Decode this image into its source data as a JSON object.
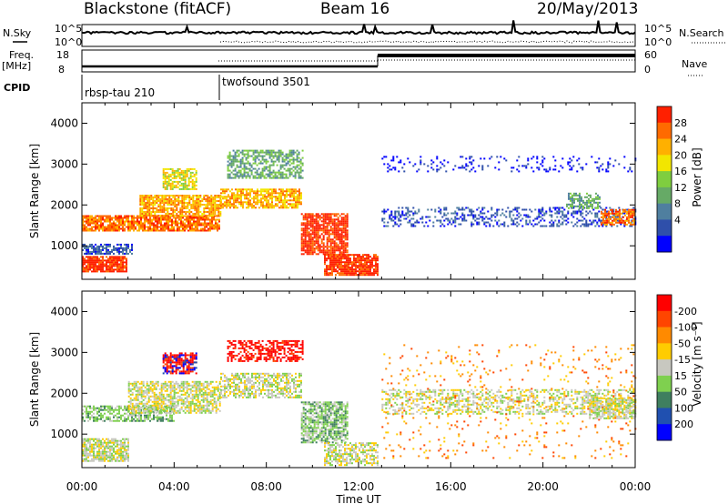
{
  "header": {
    "site": "Blackstone (fitACF)",
    "beam": "Beam 16",
    "date": "20/May/2013"
  },
  "summary_labels": {
    "nsky": "N.Sky",
    "nsearch": "N.Search",
    "freq": "Freq.",
    "freq_unit": "[MHz]",
    "nave": "Nave",
    "cpid": "CPID",
    "noise_tick_hi": "10^5",
    "noise_tick_lo": "10^0",
    "freq_tick_hi": "18",
    "freq_tick_lo": "8",
    "nave_tick_hi": "60",
    "nave_tick_lo": "0"
  },
  "cpid_segments": [
    {
      "label": "rbsp-tau 210",
      "start_hour": 0
    },
    {
      "label": "twofsound 3501",
      "start_hour": 6
    }
  ],
  "colors": {
    "power": [
      "#0000ff",
      "#2f4faa",
      "#4f7f9f",
      "#66aa66",
      "#7fce3f",
      "#f2e600",
      "#ffb000",
      "#ff6a00",
      "#ff2000"
    ],
    "velocity": [
      "#0000ff",
      "#2050b0",
      "#3f7f5f",
      "#7fd04f",
      "#c8c8c0",
      "#ffcc00",
      "#ff8a00",
      "#ff4500",
      "#ff0000"
    ]
  },
  "chart_data": [
    {
      "type": "heatmap",
      "quantity": "power",
      "ylabel": "Slant Range [km]",
      "xlabel": "",
      "xlim_hours": [
        0,
        24
      ],
      "ylim": [
        180,
        4500
      ],
      "y_ticks": [
        1000,
        2000,
        3000,
        4000
      ],
      "colorbar_label": "Power [dB]",
      "colorbar_ticks": [
        4,
        8,
        12,
        16,
        20,
        24,
        28
      ],
      "scatter_bands": [
        {
          "h0": 0.0,
          "h1": 1.9,
          "r0": 350,
          "r1": 750,
          "level": 8,
          "density": 0.85
        },
        {
          "h0": 0.0,
          "h1": 2.2,
          "r0": 800,
          "r1": 1050,
          "level": 1,
          "density": 0.7
        },
        {
          "h0": 0.0,
          "h1": 6.0,
          "r0": 1350,
          "r1": 1750,
          "level": 7,
          "density": 0.85
        },
        {
          "h0": 2.5,
          "h1": 6.0,
          "r0": 1750,
          "r1": 2250,
          "level": 6,
          "density": 0.8
        },
        {
          "h0": 3.5,
          "h1": 5.0,
          "r0": 2400,
          "r1": 2900,
          "level": 5,
          "density": 0.7
        },
        {
          "h0": 6.0,
          "h1": 9.5,
          "r0": 1950,
          "r1": 2400,
          "level": 6,
          "density": 0.75
        },
        {
          "h0": 6.3,
          "h1": 9.6,
          "r0": 2650,
          "r1": 3350,
          "level": 3,
          "density": 0.6
        },
        {
          "h0": 9.5,
          "h1": 11.5,
          "r0": 800,
          "r1": 1800,
          "level": 8,
          "density": 0.8
        },
        {
          "h0": 10.5,
          "h1": 12.8,
          "r0": 300,
          "r1": 800,
          "level": 8,
          "density": 0.85
        },
        {
          "h0": 13.0,
          "h1": 24.0,
          "r0": 1500,
          "r1": 1950,
          "level": 1,
          "density": 0.35
        },
        {
          "h0": 13.0,
          "h1": 24.0,
          "r0": 2800,
          "r1": 3200,
          "level": 0,
          "density": 0.15
        },
        {
          "h0": 21.0,
          "h1": 22.5,
          "r0": 1900,
          "r1": 2300,
          "level": 3,
          "density": 0.55
        },
        {
          "h0": 22.5,
          "h1": 24.0,
          "r0": 1500,
          "r1": 1900,
          "level": 7,
          "density": 0.7
        }
      ]
    },
    {
      "type": "heatmap",
      "quantity": "velocity",
      "ylabel": "Slant Range [km]",
      "xlabel": "Time UT",
      "x_tick_labels": [
        "00:00",
        "04:00",
        "08:00",
        "12:00",
        "16:00",
        "20:00",
        "00:00"
      ],
      "xlim_hours": [
        0,
        24
      ],
      "ylim": [
        180,
        4500
      ],
      "y_ticks": [
        1000,
        2000,
        3000,
        4000
      ],
      "colorbar_label": "Velocity [m s⁻¹]",
      "colorbar_ticks": [
        "200",
        "100",
        "50",
        "15",
        "-15",
        "-50",
        "-100",
        "-200"
      ],
      "scatter_bands": [
        {
          "h0": 0.0,
          "h1": 2.0,
          "r0": 350,
          "r1": 900,
          "level": 4,
          "density": 0.8
        },
        {
          "h0": 0.0,
          "h1": 4.0,
          "r0": 1300,
          "r1": 1700,
          "level": 3,
          "density": 0.6
        },
        {
          "h0": 2.0,
          "h1": 6.0,
          "r0": 1500,
          "r1": 2300,
          "level": 4,
          "density": 0.7
        },
        {
          "h0": 3.5,
          "h1": 5.0,
          "r0": 2500,
          "r1": 3000,
          "level": 8,
          "density": 0.6
        },
        {
          "h0": 3.5,
          "h1": 5.0,
          "r0": 2500,
          "r1": 3000,
          "level": 0,
          "density": 0.25
        },
        {
          "h0": 6.3,
          "h1": 9.6,
          "r0": 2800,
          "r1": 3300,
          "level": 8,
          "density": 0.55
        },
        {
          "h0": 6.0,
          "h1": 9.5,
          "r0": 1900,
          "r1": 2500,
          "level": 4,
          "density": 0.6
        },
        {
          "h0": 9.5,
          "h1": 11.5,
          "r0": 800,
          "r1": 1800,
          "level": 3,
          "density": 0.7
        },
        {
          "h0": 10.5,
          "h1": 12.8,
          "r0": 250,
          "r1": 800,
          "level": 4,
          "density": 0.6
        },
        {
          "h0": 13.0,
          "h1": 24.0,
          "r0": 1500,
          "r1": 2100,
          "level": 4,
          "density": 0.45
        },
        {
          "h0": 13.0,
          "h1": 24.0,
          "r0": 400,
          "r1": 3200,
          "level": 6,
          "density": 0.05
        },
        {
          "h0": 22.0,
          "h1": 24.0,
          "r0": 1400,
          "r1": 1900,
          "level": 4,
          "density": 0.7
        }
      ]
    }
  ]
}
